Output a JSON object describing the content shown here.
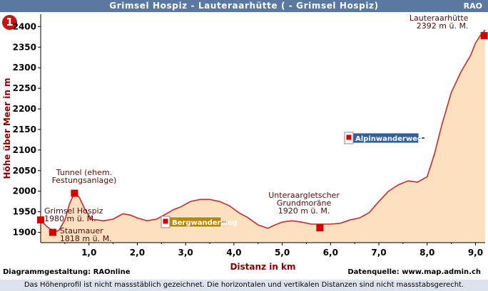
{
  "header": {
    "title": "Grimsel Hospiz - Lauteraarhütte ( - Grimsel Hospiz)",
    "logo": "RAO"
  },
  "badge": "1",
  "footer": {
    "credit_left": "Diagrammgestaltung: RAOnline",
    "credit_right": "Datenquelle: www.map.admin.ch",
    "disclaimer": "Das Höhenprofil ist nicht massstäblich gezeichnet. Die horizontalen und vertikalen Distanzen sind nicht massstabsgerecht."
  },
  "chart_data": {
    "type": "area",
    "title": "",
    "xlabel": "Distanz in km",
    "ylabel": "Höhe über Meer in m",
    "xlim": [
      0,
      9.2
    ],
    "ylim": [
      1875,
      2430
    ],
    "x_ticks": [
      1,
      2,
      3,
      4,
      5,
      6,
      7,
      8,
      9
    ],
    "x_tick_labels": [
      "1,0",
      "2,0",
      "3,0",
      "4,0",
      "5,0",
      "6,0",
      "7,0",
      "8,0",
      "9,0"
    ],
    "y_ticks": [
      1900,
      1950,
      2000,
      2050,
      2100,
      2150,
      2200,
      2250,
      2300,
      2350,
      2400
    ],
    "y_tick_labels": [
      "1900",
      "1950",
      "2000",
      "2050",
      "2100",
      "2150",
      "2200",
      "2250",
      "2300",
      "2350",
      "2400"
    ],
    "grid": false,
    "profile": {
      "x": [
        0,
        0.12,
        0.28,
        0.38,
        0.5,
        0.6,
        0.7,
        0.8,
        0.92,
        1.05,
        1.3,
        1.5,
        1.7,
        1.85,
        2.0,
        2.2,
        2.4,
        2.6,
        2.75,
        2.9,
        3.1,
        3.3,
        3.5,
        3.7,
        3.9,
        4.1,
        4.3,
        4.5,
        4.7,
        4.85,
        5.0,
        5.2,
        5.4,
        5.6,
        5.8,
        6.0,
        6.2,
        6.4,
        6.6,
        6.8,
        7.0,
        7.2,
        7.4,
        7.6,
        7.8,
        8.0,
        8.15,
        8.3,
        8.5,
        8.7,
        8.9,
        9.0,
        9.1,
        9.2
      ],
      "y": [
        1930,
        1915,
        1900,
        1905,
        1930,
        1970,
        1996,
        1985,
        1955,
        1932,
        1928,
        1932,
        1945,
        1942,
        1935,
        1928,
        1932,
        1945,
        1955,
        1962,
        1975,
        1980,
        1980,
        1975,
        1965,
        1948,
        1935,
        1918,
        1910,
        1918,
        1925,
        1928,
        1925,
        1920,
        1920,
        1920,
        1922,
        1930,
        1935,
        1948,
        1975,
        2000,
        2015,
        2025,
        2022,
        2035,
        2090,
        2160,
        2240,
        2290,
        2330,
        2360,
        2378,
        2392
      ]
    },
    "waypoints": [
      {
        "x": 0.0,
        "y": 1930,
        "label": [
          "Grimsel Hospiz",
          "1980 m ü. M."
        ]
      },
      {
        "x": 0.25,
        "y": 1900,
        "label": [
          "Staumauer",
          "1818 m ü. M."
        ]
      },
      {
        "x": 0.7,
        "y": 1995,
        "label": [
          "Tunnel (ehem.",
          "Festungsanlage)"
        ]
      },
      {
        "x": 5.78,
        "y": 1911,
        "label": [
          "Unteraargletscher",
          "Grundmoräne",
          "1920 m ü. M."
        ]
      },
      {
        "x": 9.18,
        "y": 2378,
        "label": [
          "Lauteraarhütte",
          "2392 m ü. M."
        ]
      }
    ],
    "signs": [
      {
        "text": "Bergwanderweg",
        "color": "#b8860b"
      },
      {
        "text": "Alpinwanderweg",
        "color": "#2f5f9e"
      }
    ],
    "colors": {
      "fill": "#fce0c0",
      "line": "#cc2a2a",
      "marker": "#d40000",
      "axis_label": "#8b0000"
    }
  }
}
